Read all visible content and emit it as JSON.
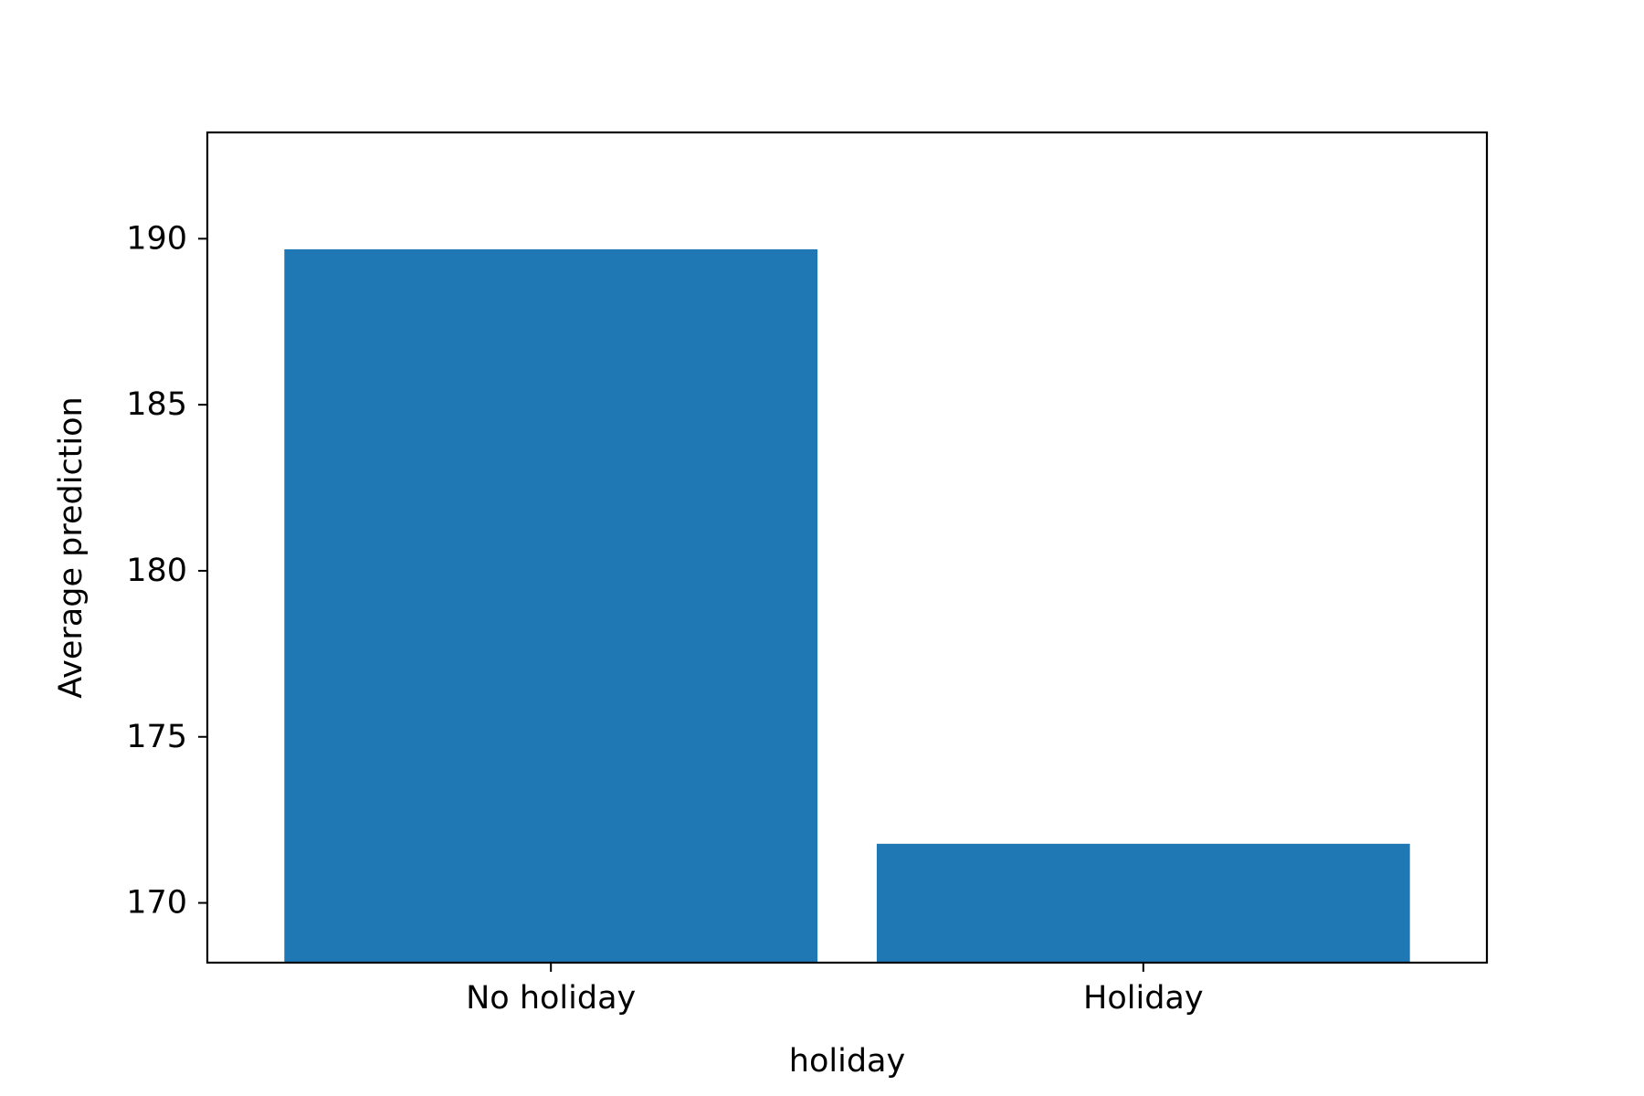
{
  "chart_data": {
    "type": "bar",
    "title": "",
    "xlabel": "holiday",
    "ylabel": "Average prediction",
    "categories": [
      "No holiday",
      "Holiday"
    ],
    "values": [
      189.68,
      171.78
    ],
    "ylim": [
      168.2,
      193.2
    ],
    "yticks": [
      170,
      175,
      180,
      185,
      190
    ],
    "bar_color": "#1f77b4",
    "grid": false,
    "legend": "none"
  }
}
